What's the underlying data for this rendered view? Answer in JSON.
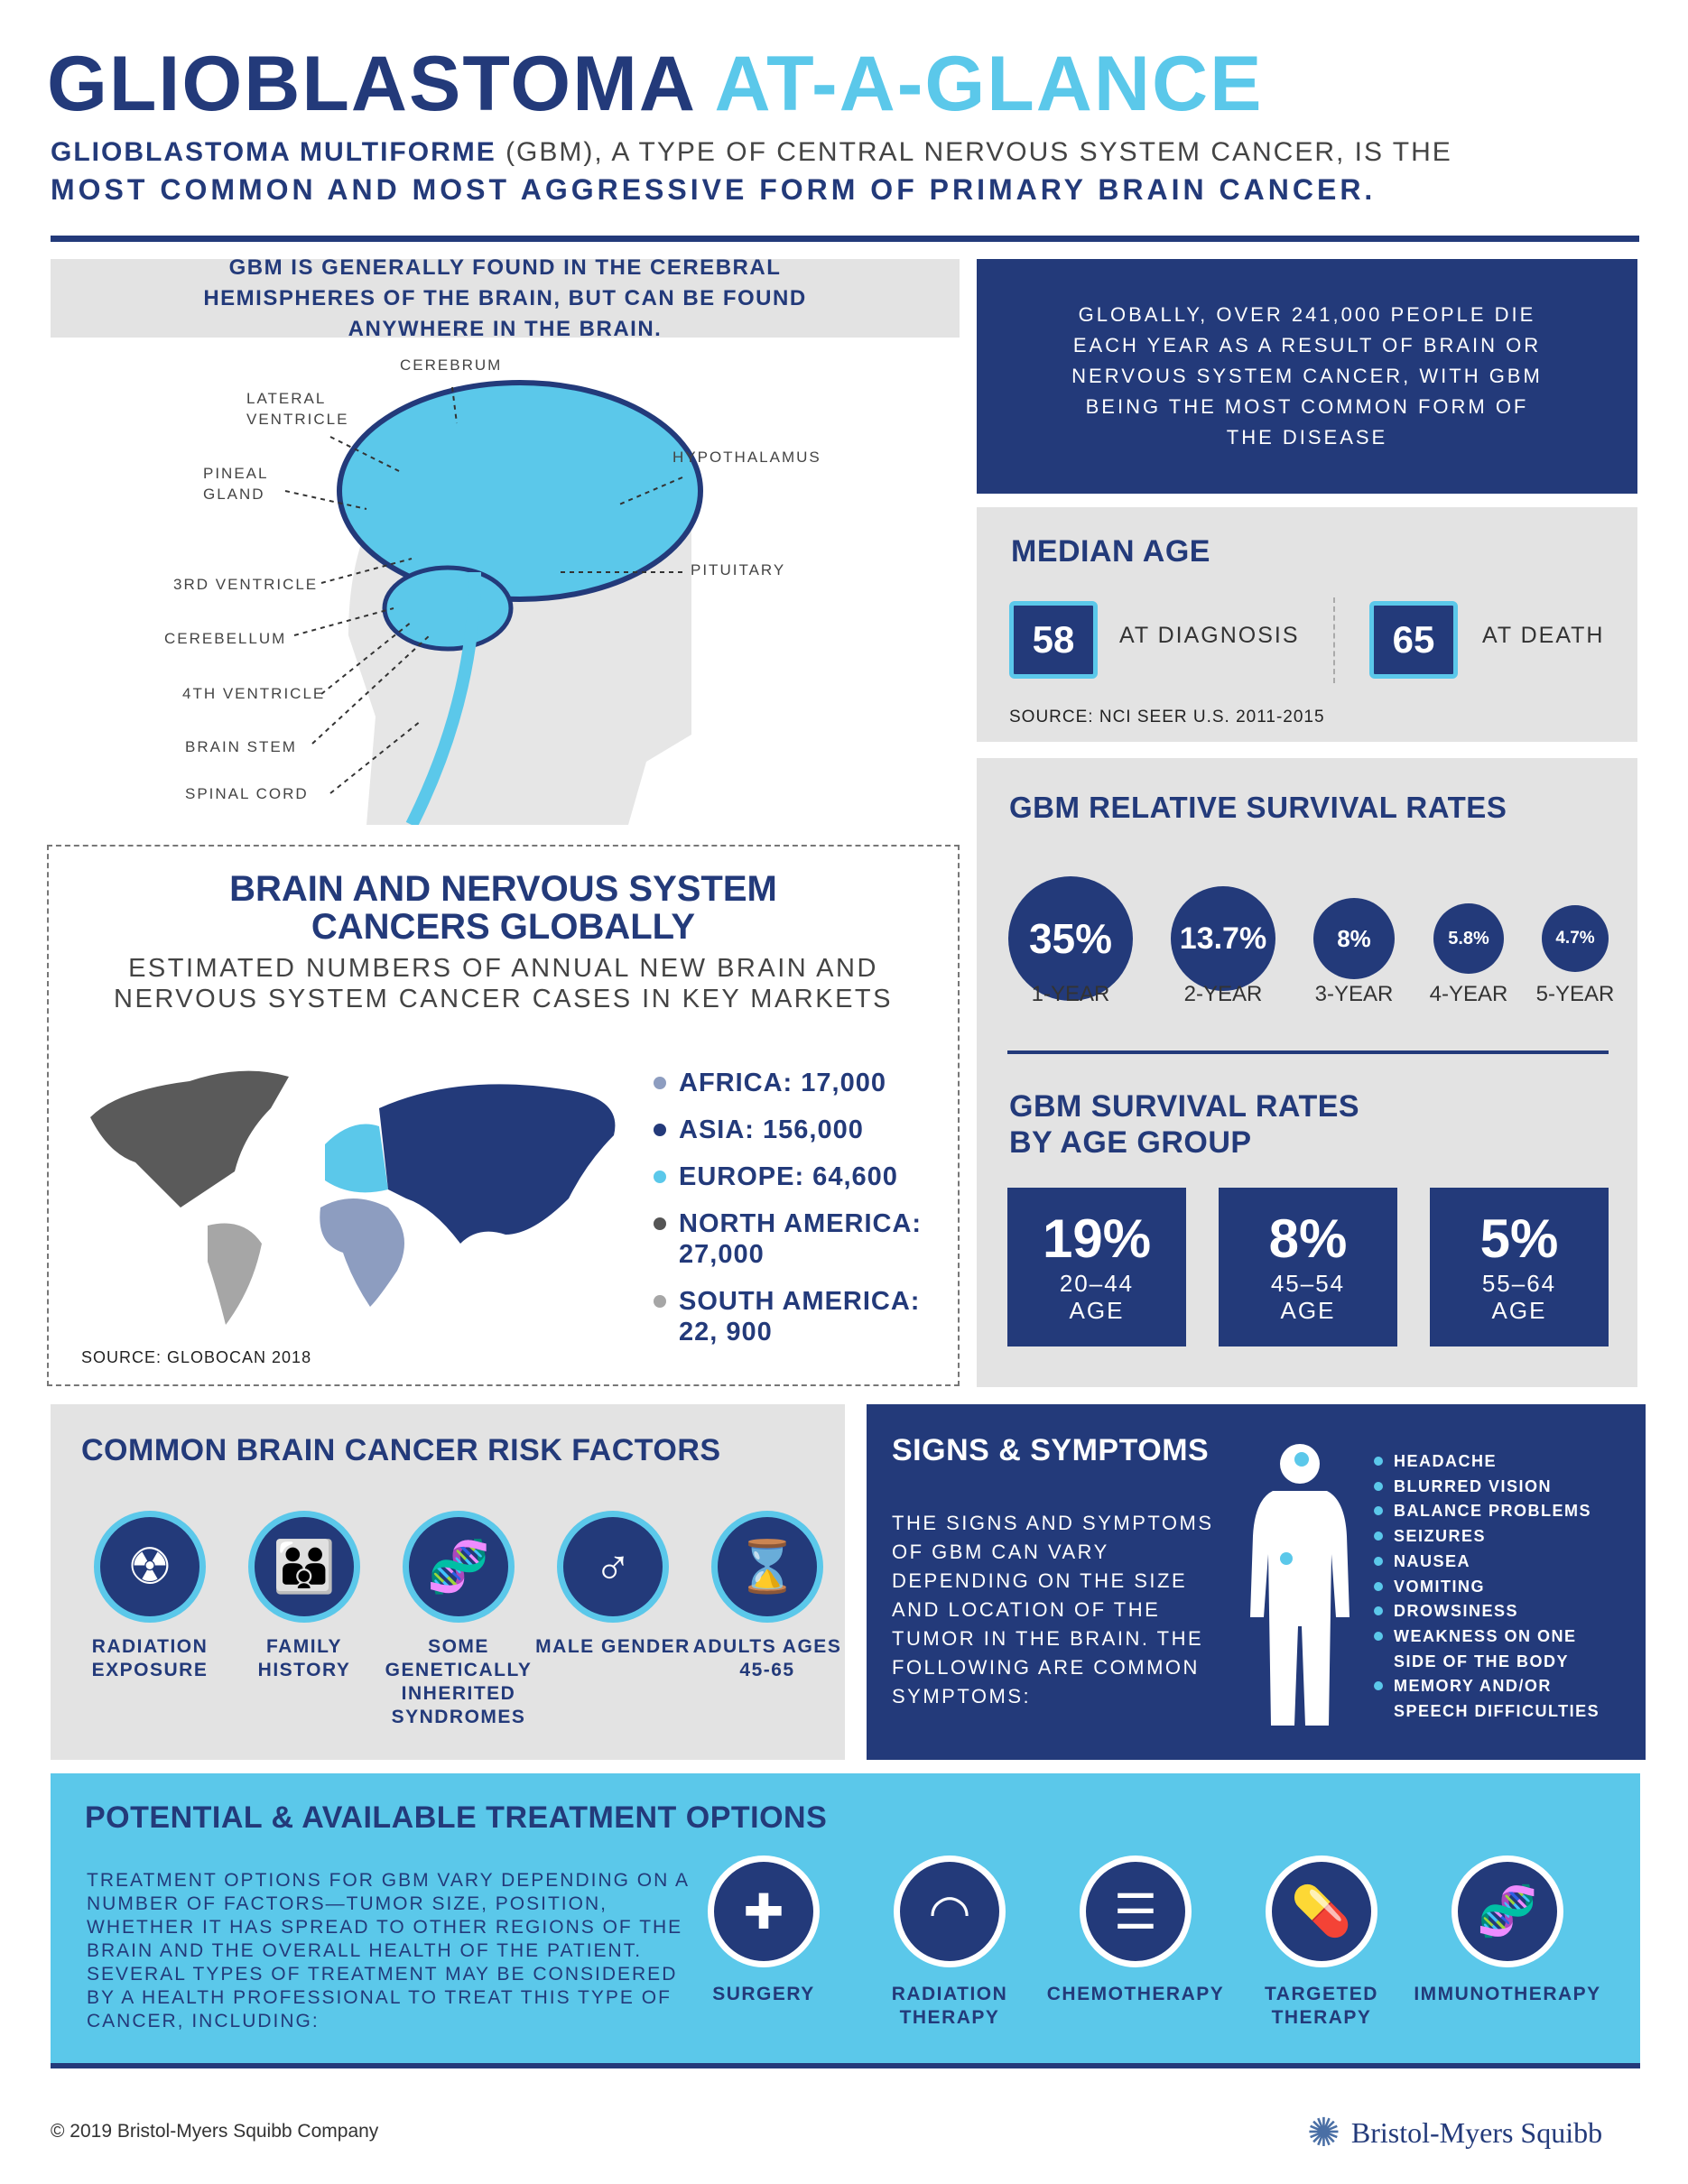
{
  "header": {
    "title_a": "GLIOBLASTOMA",
    "title_b": "AT-A-GLANCE",
    "sub_bold1": "GLIOBLASTOMA MULTIFORME",
    "sub_rest1": " (GBM), A TYPE OF CENTRAL NERVOUS SYSTEM CANCER, IS THE",
    "sub_line2": "MOST COMMON AND MOST AGGRESSIVE FORM OF PRIMARY BRAIN CANCER."
  },
  "brain": {
    "heading": "GBM IS GENERALLY FOUND IN THE CEREBRAL HEMISPHERES OF THE BRAIN, BUT CAN BE FOUND ANYWHERE IN THE BRAIN.",
    "labels": {
      "cerebrum": "CEREBRUM",
      "lateral": "LATERAL VENTRICLE",
      "pineal": "PINEAL GLAND",
      "hypothalamus": "HYPOTHALAMUS",
      "pituitary": "PITUITARY",
      "third": "3RD VENTRICLE",
      "cerebellum": "CEREBELLUM",
      "fourth": "4TH VENTRICLE",
      "stem": "BRAIN STEM",
      "spinal": "SPINAL CORD"
    }
  },
  "global": {
    "text": "GLOBALLY, OVER 241,000 PEOPLE DIE EACH YEAR AS A RESULT OF BRAIN OR NERVOUS SYSTEM CANCER, WITH GBM BEING THE MOST COMMON FORM OF THE DISEASE"
  },
  "median": {
    "title": "MEDIAN AGE",
    "diag_value": "58",
    "diag_label": "AT DIAGNOSIS",
    "death_value": "65",
    "death_label": "AT DEATH",
    "source": "SOURCE: NCI SEER U.S. 2011-2015"
  },
  "survival": {
    "title": "GBM RELATIVE SURVIVAL RATES",
    "items": [
      {
        "value": "35%",
        "label": "1-YEAR"
      },
      {
        "value": "13.7%",
        "label": "2-YEAR"
      },
      {
        "value": "8%",
        "label": "3-YEAR"
      },
      {
        "value": "5.8%",
        "label": "4-YEAR"
      },
      {
        "value": "4.7%",
        "label": "5-YEAR"
      }
    ],
    "age_title1": "GBM SURVIVAL RATES",
    "age_title2": "BY AGE GROUP",
    "ages": [
      {
        "value": "19%",
        "range": "20–44",
        "unit": "AGE"
      },
      {
        "value": "8%",
        "range": "45–54",
        "unit": "AGE"
      },
      {
        "value": "5%",
        "range": "55–64",
        "unit": "AGE"
      }
    ]
  },
  "cancers": {
    "title1": "BRAIN AND NERVOUS SYSTEM",
    "title2": "CANCERS GLOBALLY",
    "sub1": "ESTIMATED NUMBERS OF ANNUAL NEW BRAIN AND",
    "sub2": "NERVOUS SYSTEM CANCER CASES IN KEY MARKETS",
    "legend": [
      {
        "label": "AFRICA: 17,000",
        "color": "#8d9dc0"
      },
      {
        "label": "ASIA: 156,000",
        "color": "#233a7a"
      },
      {
        "label": "EUROPE: 64,600",
        "color": "#5bc8ea"
      },
      {
        "label": "NORTH AMERICA: 27,000",
        "color": "#555555"
      },
      {
        "label": "SOUTH AMERICA: 22, 900",
        "color": "#a6a6a6"
      }
    ],
    "source": "SOURCE: GLOBOCAN 2018"
  },
  "risk": {
    "title": "COMMON BRAIN CANCER RISK FACTORS",
    "items": [
      {
        "icon": "radiation-icon",
        "glyph": "☢",
        "label": "RADIATION EXPOSURE"
      },
      {
        "icon": "family-icon",
        "glyph": "👪",
        "label": "FAMILY HISTORY"
      },
      {
        "icon": "dna-icon",
        "glyph": "🧬",
        "label": "SOME GENETICALLY INHERITED SYNDROMES"
      },
      {
        "icon": "male-icon",
        "glyph": "♂",
        "label": "MALE GENDER"
      },
      {
        "icon": "hourglass-icon",
        "glyph": "⌛",
        "label": "ADULTS AGES 45-65"
      }
    ]
  },
  "signs": {
    "title": "SIGNS & SYMPTOMS",
    "text": "THE SIGNS AND SYMPTOMS OF GBM CAN VARY DEPENDING ON THE SIZE AND LOCATION OF THE TUMOR IN THE BRAIN. THE FOLLOWING ARE COMMON SYMPTOMS:",
    "list": [
      "HEADACHE",
      "BLURRED VISION",
      "BALANCE PROBLEMS",
      "SEIZURES",
      "NAUSEA",
      "VOMITING",
      "DROWSINESS",
      "WEAKNESS ON ONE",
      "SIDE OF THE BODY",
      "MEMORY AND/OR",
      "SPEECH DIFFICULTIES"
    ]
  },
  "treatment": {
    "title": "POTENTIAL & AVAILABLE TREATMENT OPTIONS",
    "text": "TREATMENT OPTIONS FOR GBM VARY DEPENDING ON A NUMBER OF FACTORS—TUMOR SIZE, POSITION, WHETHER IT HAS SPREAD TO OTHER REGIONS OF THE BRAIN AND THE OVERALL HEALTH OF THE PATIENT. SEVERAL TYPES OF TREATMENT MAY BE CONSIDERED BY A HEALTH PROFESSIONAL TO TREAT THIS TYPE OF CANCER, INCLUDING:",
    "items": [
      {
        "icon": "first-aid-kit-icon",
        "glyph": "✚",
        "label": "SURGERY"
      },
      {
        "icon": "radiation-therapy-icon",
        "glyph": "◠",
        "label": "RADIATION THERAPY"
      },
      {
        "icon": "iv-bag-icon",
        "glyph": "☰",
        "label": "CHEMOTHERAPY"
      },
      {
        "icon": "pills-icon",
        "glyph": "💊",
        "label": "TARGETED THERAPY"
      },
      {
        "icon": "dna-icon",
        "glyph": "🧬",
        "label": "IMMUNOTHERAPY"
      }
    ]
  },
  "footer": {
    "copyright": "© 2019 Bristol-Myers Squibb Company",
    "brand": "Bristol-Myers Squibb"
  },
  "colors": {
    "navy": "#233a7a",
    "cyan": "#5bc8ea",
    "gray": "#e3e3e3"
  }
}
